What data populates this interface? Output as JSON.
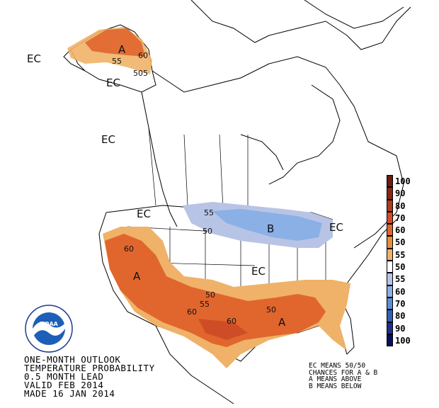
{
  "map": {
    "labels": {
      "ec_alaska": "EC",
      "ec_nw_canada": "EC",
      "ec_bc": "EC",
      "ec_pacific_nw": "EC",
      "ec_central": "EC",
      "ec_northeast": "EC",
      "a_alaska": "A",
      "a_west": "A",
      "a_south": "A",
      "b_great_lakes": "B"
    },
    "contours": {
      "ak_50": "50",
      "ak_55": "55",
      "ak_60": "60",
      "ak_505": "505",
      "west_60": "60",
      "sw_60": "60",
      "sw_55": "55",
      "sw_50": "50",
      "south_60": "60",
      "south_50": "50",
      "b_55": "55",
      "b_50": "50"
    }
  },
  "legend": {
    "items": [
      {
        "label": "100",
        "color": "#6b1c10"
      },
      {
        "label": "90",
        "color": "#8c2413"
      },
      {
        "label": "80",
        "color": "#b03a1e"
      },
      {
        "label": "70",
        "color": "#cf4d26"
      },
      {
        "label": "60",
        "color": "#e0662e"
      },
      {
        "label": "50",
        "color": "#e88e3a"
      },
      {
        "label": "55",
        "color": "#efb268"
      },
      {
        "label": "50",
        "color": "#ffffff"
      },
      {
        "label": "55",
        "color": "#b8c4e6"
      },
      {
        "label": "60",
        "color": "#8ab0e6"
      },
      {
        "label": "70",
        "color": "#5a8fd6"
      },
      {
        "label": "80",
        "color": "#2f5fb8"
      },
      {
        "label": "90",
        "color": "#1d2f8f"
      },
      {
        "label": "100",
        "color": "#0a0f5a"
      }
    ]
  },
  "outlook": {
    "line1": "ONE-MONTH OUTLOOK",
    "line2": "TEMPERATURE PROBABILITY",
    "line3": "0.5 MONTH LEAD",
    "line4": "VALID FEB 2014",
    "line5": "MADE 16 JAN 2014"
  },
  "key": {
    "line1": "EC MEANS 50/50",
    "line2": "CHANCES FOR A & B",
    "line3": "A MEANS ABOVE",
    "line4": "B MEANS BELOW"
  },
  "logo": {
    "text": "NOAA"
  }
}
